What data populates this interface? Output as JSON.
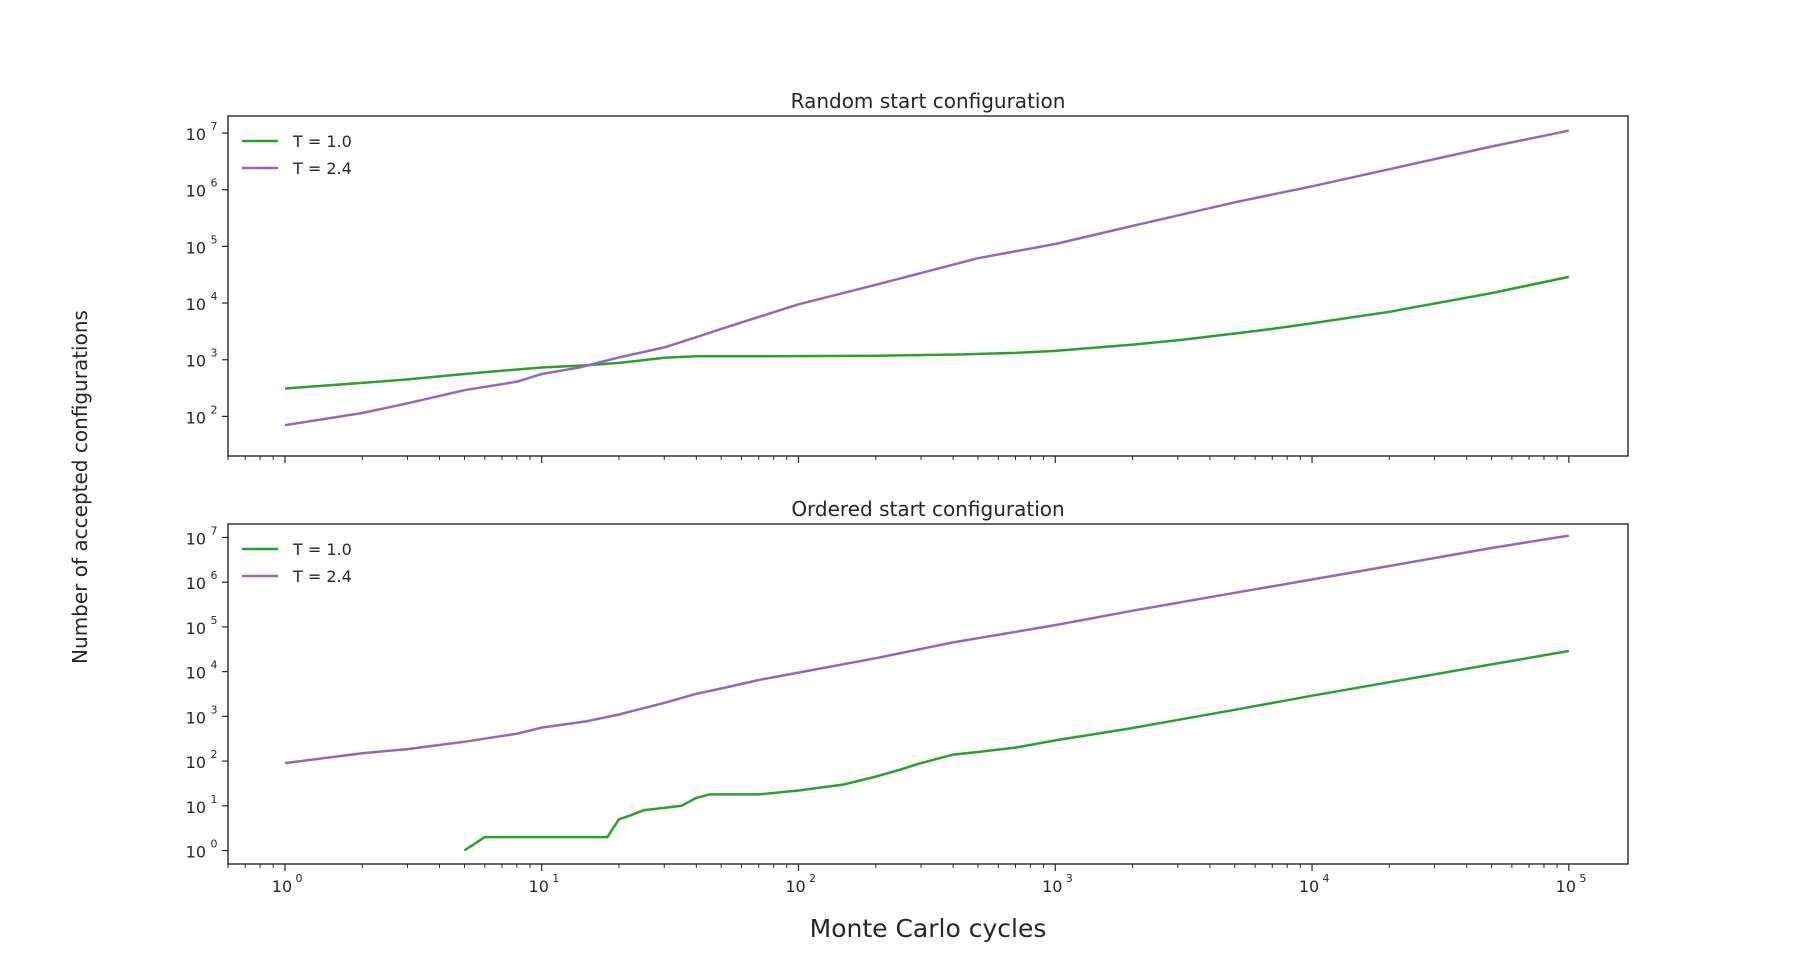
{
  "figure": {
    "xlabel": "Monte Carlo cycles",
    "ylabel": "Number of accepted configurations"
  },
  "colors": {
    "t1": "#2ca02c",
    "t24": "#9467bd",
    "axis": "#262626"
  },
  "chart_data": [
    {
      "type": "line",
      "title": "Random start configuration",
      "xscale": "log",
      "yscale": "log",
      "xlim": [
        0.6,
        170000
      ],
      "ylim": [
        20,
        20000000
      ],
      "xticks": [
        1,
        10,
        100,
        1000,
        10000,
        100000
      ],
      "yticks": [
        100,
        1000,
        10000,
        100000,
        1000000,
        10000000
      ],
      "legend": "top-left",
      "grid": false,
      "series": [
        {
          "name": "T = 1.0",
          "color": "#2ca02c",
          "points": [
            [
              1,
              310
            ],
            [
              2,
              390
            ],
            [
              3,
              450
            ],
            [
              5,
              560
            ],
            [
              7,
              640
            ],
            [
              10,
              730
            ],
            [
              15,
              800
            ],
            [
              20,
              880
            ],
            [
              30,
              1080
            ],
            [
              40,
              1150
            ],
            [
              60,
              1150
            ],
            [
              100,
              1160
            ],
            [
              200,
              1180
            ],
            [
              400,
              1230
            ],
            [
              700,
              1320
            ],
            [
              1000,
              1430
            ],
            [
              2000,
              1850
            ],
            [
              3000,
              2200
            ],
            [
              5000,
              2900
            ],
            [
              7000,
              3500
            ],
            [
              10000,
              4400
            ],
            [
              20000,
              7000
            ],
            [
              50000,
              15000
            ],
            [
              100000,
              29000
            ]
          ]
        },
        {
          "name": "T = 2.4",
          "color": "#9467bd",
          "points": [
            [
              1,
              70
            ],
            [
              2,
              115
            ],
            [
              3,
              170
            ],
            [
              5,
              290
            ],
            [
              8,
              410
            ],
            [
              10,
              560
            ],
            [
              14,
              730
            ],
            [
              20,
              1100
            ],
            [
              30,
              1650
            ],
            [
              40,
              2500
            ],
            [
              50,
              3500
            ],
            [
              100,
              9500
            ],
            [
              200,
              21000
            ],
            [
              500,
              62000
            ],
            [
              1000,
              110000
            ],
            [
              2000,
              230000
            ],
            [
              5000,
              600000
            ],
            [
              10000,
              1150000
            ],
            [
              20000,
              2300000
            ],
            [
              50000,
              5800000
            ],
            [
              100000,
              11000000
            ]
          ]
        }
      ]
    },
    {
      "type": "line",
      "title": "Ordered start configuration",
      "xscale": "log",
      "yscale": "log",
      "xlim": [
        0.6,
        170000
      ],
      "ylim": [
        0.5,
        20000000
      ],
      "xticks": [
        1,
        10,
        100,
        1000,
        10000,
        100000
      ],
      "yticks": [
        1,
        10,
        100,
        1000,
        10000,
        100000,
        1000000,
        10000000
      ],
      "legend": "top-left",
      "grid": false,
      "series": [
        {
          "name": "T = 1.0",
          "color": "#2ca02c",
          "points": [
            [
              5,
              1
            ],
            [
              6,
              2
            ],
            [
              10,
              2
            ],
            [
              18,
              2
            ],
            [
              20,
              5
            ],
            [
              22,
              6
            ],
            [
              25,
              8
            ],
            [
              30,
              9
            ],
            [
              35,
              10
            ],
            [
              40,
              15
            ],
            [
              45,
              18
            ],
            [
              70,
              18
            ],
            [
              100,
              22
            ],
            [
              150,
              30
            ],
            [
              200,
              45
            ],
            [
              250,
              65
            ],
            [
              300,
              90
            ],
            [
              400,
              140
            ],
            [
              500,
              160
            ],
            [
              700,
              200
            ],
            [
              1000,
              290
            ],
            [
              2000,
              550
            ],
            [
              5000,
              1400
            ],
            [
              10000,
              2900
            ],
            [
              20000,
              5800
            ],
            [
              50000,
              14500
            ],
            [
              100000,
              29000
            ]
          ]
        },
        {
          "name": "T = 2.4",
          "color": "#9467bd",
          "points": [
            [
              1,
              90
            ],
            [
              2,
              150
            ],
            [
              3,
              185
            ],
            [
              5,
              270
            ],
            [
              8,
              410
            ],
            [
              10,
              560
            ],
            [
              15,
              780
            ],
            [
              20,
              1100
            ],
            [
              30,
              2000
            ],
            [
              40,
              3200
            ],
            [
              50,
              4200
            ],
            [
              70,
              6500
            ],
            [
              100,
              9500
            ],
            [
              200,
              20000
            ],
            [
              400,
              45000
            ],
            [
              1000,
              110000
            ],
            [
              2000,
              230000
            ],
            [
              5000,
              580000
            ],
            [
              10000,
              1150000
            ],
            [
              20000,
              2300000
            ],
            [
              50000,
              5800000
            ],
            [
              100000,
              11000000
            ]
          ]
        }
      ]
    }
  ]
}
